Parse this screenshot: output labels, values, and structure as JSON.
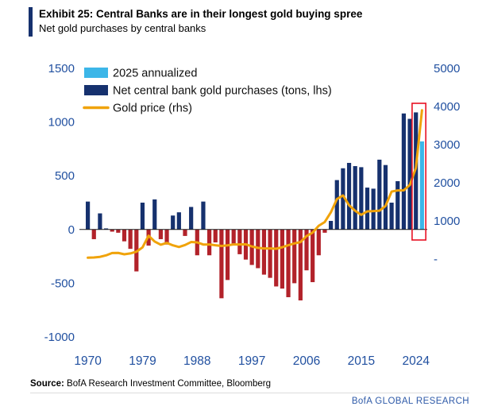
{
  "header": {
    "title": "Exhibit 25: Central Banks are in their longest gold buying spree",
    "subtitle": "Net gold purchases by central banks"
  },
  "legend": [
    {
      "label": "2025 annualized",
      "swatch": "rect",
      "color": "#3cb6e8"
    },
    {
      "label": "Net central bank gold purchases (tons, lhs)",
      "swatch": "rect",
      "color": "#16316e"
    },
    {
      "label": "Gold price (rhs)",
      "swatch": "line",
      "color": "#f0a30a"
    }
  ],
  "colors": {
    "bar_positive": "#16316e",
    "bar_negative": "#b2222a",
    "bar_annualized": "#3cb6e8",
    "gold_line": "#f0a30a",
    "axis_text": "#2150a0",
    "zero_line": "#1a1a1a",
    "highlight": "#e81123",
    "accent": "#16316e",
    "branding": "#2e5aa8"
  },
  "chart_data": {
    "type": "combo",
    "title": "Net gold purchases by central banks",
    "legend_position": "top-left",
    "grid": false,
    "x": [
      1970,
      1971,
      1972,
      1973,
      1974,
      1975,
      1976,
      1977,
      1978,
      1979,
      1980,
      1981,
      1982,
      1983,
      1984,
      1985,
      1986,
      1987,
      1988,
      1989,
      1990,
      1991,
      1992,
      1993,
      1994,
      1995,
      1996,
      1997,
      1998,
      1999,
      2000,
      2001,
      2002,
      2003,
      2004,
      2005,
      2006,
      2007,
      2008,
      2009,
      2010,
      2011,
      2012,
      2013,
      2014,
      2015,
      2016,
      2017,
      2018,
      2019,
      2020,
      2021,
      2022,
      2023,
      2024,
      2025
    ],
    "series": [
      {
        "name": "Net central bank gold purchases (tons, lhs)",
        "type": "bar",
        "axis": "left",
        "values": [
          260,
          -90,
          150,
          10,
          -20,
          -30,
          -110,
          -180,
          -390,
          250,
          -150,
          280,
          -90,
          -140,
          130,
          160,
          -60,
          210,
          -240,
          260,
          -240,
          -120,
          -640,
          -470,
          -130,
          -230,
          -280,
          -330,
          -360,
          -420,
          -450,
          -530,
          -550,
          -630,
          -500,
          -660,
          -380,
          -490,
          -240,
          -30,
          80,
          460,
          570,
          620,
          590,
          580,
          390,
          380,
          650,
          600,
          250,
          450,
          1080,
          1030,
          1090,
          820
        ]
      },
      {
        "name": "Gold price (rhs)",
        "type": "line",
        "axis": "right",
        "values": [
          36,
          41,
          58,
          97,
          159,
          161,
          125,
          148,
          193,
          306,
          612,
          460,
          376,
          424,
          360,
          317,
          368,
          447,
          437,
          381,
          384,
          362,
          344,
          360,
          384,
          384,
          388,
          331,
          294,
          279,
          279,
          271,
          310,
          363,
          410,
          445,
          603,
          695,
          872,
          972,
          1225,
          1572,
          1669,
          1411,
          1266,
          1160,
          1251,
          1257,
          1268,
          1393,
          1770,
          1799,
          1801,
          1943,
          2389,
          3900
        ]
      }
    ],
    "annualized_year": 2025,
    "highlight_years": [
      2024,
      2025
    ],
    "left_axis": {
      "range": [
        -1000,
        1500
      ],
      "ticks": [
        {
          "label": "1500",
          "value": 1500
        },
        {
          "label": "1000",
          "value": 1000
        },
        {
          "label": "500",
          "value": 500
        },
        {
          "label": "0",
          "value": 0
        },
        {
          "label": "-500",
          "value": -500
        },
        {
          "label": "-1000",
          "value": -1000
        }
      ]
    },
    "right_axis": {
      "range": [
        0,
        5000
      ],
      "ticks": [
        {
          "label": "5000",
          "value": 5000
        },
        {
          "label": "4000",
          "value": 4000
        },
        {
          "label": "3000",
          "value": 3000
        },
        {
          "label": "2000",
          "value": 2000
        },
        {
          "label": "1000",
          "value": 1000
        },
        {
          "label": "-",
          "value": 0
        }
      ]
    },
    "x_axis": {
      "ticks": [
        {
          "label": "1970",
          "year": 1970
        },
        {
          "label": "1979",
          "year": 1979
        },
        {
          "label": "1988",
          "year": 1988
        },
        {
          "label": "1997",
          "year": 1997
        },
        {
          "label": "2006",
          "year": 2006
        },
        {
          "label": "2015",
          "year": 2015
        },
        {
          "label": "2024",
          "year": 2024
        }
      ]
    }
  },
  "source": {
    "label": "Source:",
    "text": " BofA Research Investment Committee, Bloomberg"
  },
  "branding": "BofA GLOBAL RESEARCH"
}
